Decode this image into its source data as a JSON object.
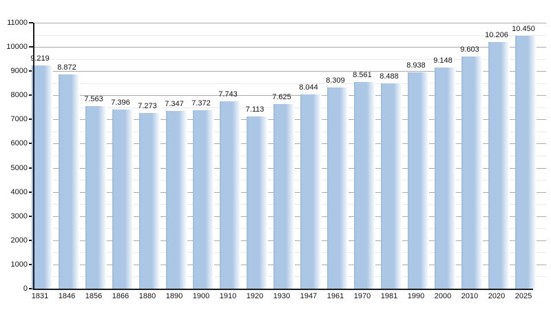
{
  "chart_data": {
    "type": "bar",
    "title": "",
    "xlabel": "",
    "ylabel": "",
    "categories": [
      "1831",
      "1846",
      "1856",
      "1866",
      "1880",
      "1890",
      "1900",
      "1910",
      "1920",
      "1930",
      "1947",
      "1961",
      "1970",
      "1981",
      "1990",
      "2000",
      "2010",
      "2020",
      "2025"
    ],
    "values": [
      9219,
      8872,
      7563,
      7396,
      7273,
      7347,
      7372,
      7743,
      7113,
      7625,
      8044,
      8309,
      8561,
      8488,
      8938,
      9148,
      9603,
      10206,
      10450
    ],
    "value_labels": [
      "9.219",
      "8.872",
      "7.563",
      "7.396",
      "7.273",
      "7.347",
      "7.372",
      "7.743",
      "7.113",
      "7.625",
      "8.044",
      "8.309",
      "8.561",
      "8.488",
      "8.938",
      "9.148",
      "9.603",
      "10.206",
      "10.450"
    ],
    "ylim": [
      0,
      11000
    ],
    "ytick_step": 1000,
    "yminor_step": 500,
    "ytick_labels": [
      "0",
      "1000",
      "2000",
      "3000",
      "4000",
      "5000",
      "6000",
      "7000",
      "8000",
      "9000",
      "10000",
      "11000"
    ],
    "grid": "on",
    "legend": "none",
    "colors": {
      "bar_fill": "#abc7e5",
      "bar_edge": "#9cbbdc",
      "bar_fade_to": "#ffffff",
      "grid_major": "#a9a9a9",
      "grid_minor": "#e9e9e9",
      "axis": "#1a1a1a",
      "text": "#111111",
      "background": "#ffffff"
    }
  }
}
